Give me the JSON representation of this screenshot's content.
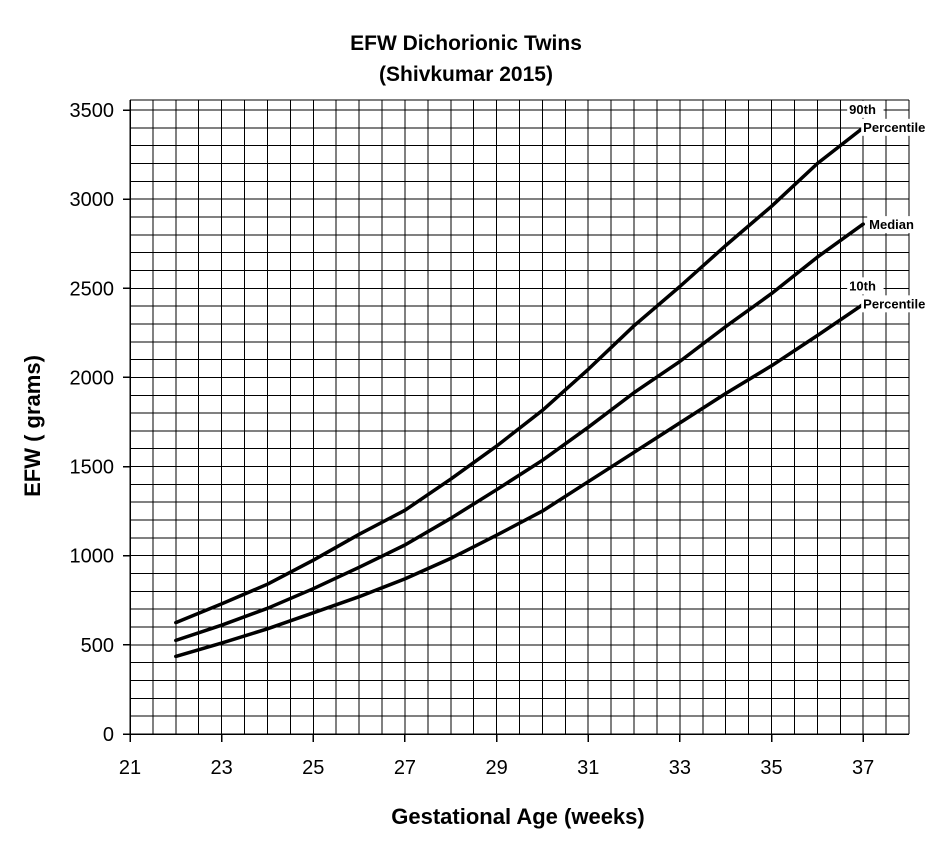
{
  "chart_data": {
    "type": "line",
    "title": "EFW Dichorionic Twins",
    "subtitle": "(Shivkumar 2015)",
    "xlabel": "Gestational Age (weeks)",
    "ylabel": "EFW ( grams)",
    "xlim": [
      21,
      38
    ],
    "ylim": [
      0,
      3500
    ],
    "x_ticks": [
      21,
      23,
      25,
      27,
      29,
      31,
      33,
      35,
      37
    ],
    "y_ticks": [
      0,
      500,
      1000,
      1500,
      2000,
      2500,
      3000,
      3500
    ],
    "grid": true,
    "x": [
      22,
      23,
      24,
      25,
      26,
      27,
      28,
      29,
      30,
      31,
      32,
      33,
      34,
      35,
      36,
      37
    ],
    "series": [
      {
        "label_lines": [
          "90th",
          "Percentile"
        ],
        "values": [
          625,
          730,
          840,
          975,
          1120,
          1255,
          1430,
          1615,
          1815,
          2045,
          2290,
          2510,
          2740,
          2960,
          3200,
          3400
        ]
      },
      {
        "label_lines": [
          "Median"
        ],
        "values": [
          525,
          610,
          705,
          815,
          935,
          1060,
          1210,
          1370,
          1535,
          1720,
          1915,
          2090,
          2285,
          2470,
          2675,
          2860
        ]
      },
      {
        "label_lines": [
          "10th",
          "Percentile"
        ],
        "values": [
          435,
          510,
          590,
          680,
          770,
          870,
          985,
          1115,
          1250,
          1415,
          1580,
          1745,
          1910,
          2065,
          2235,
          2410
        ]
      }
    ]
  }
}
